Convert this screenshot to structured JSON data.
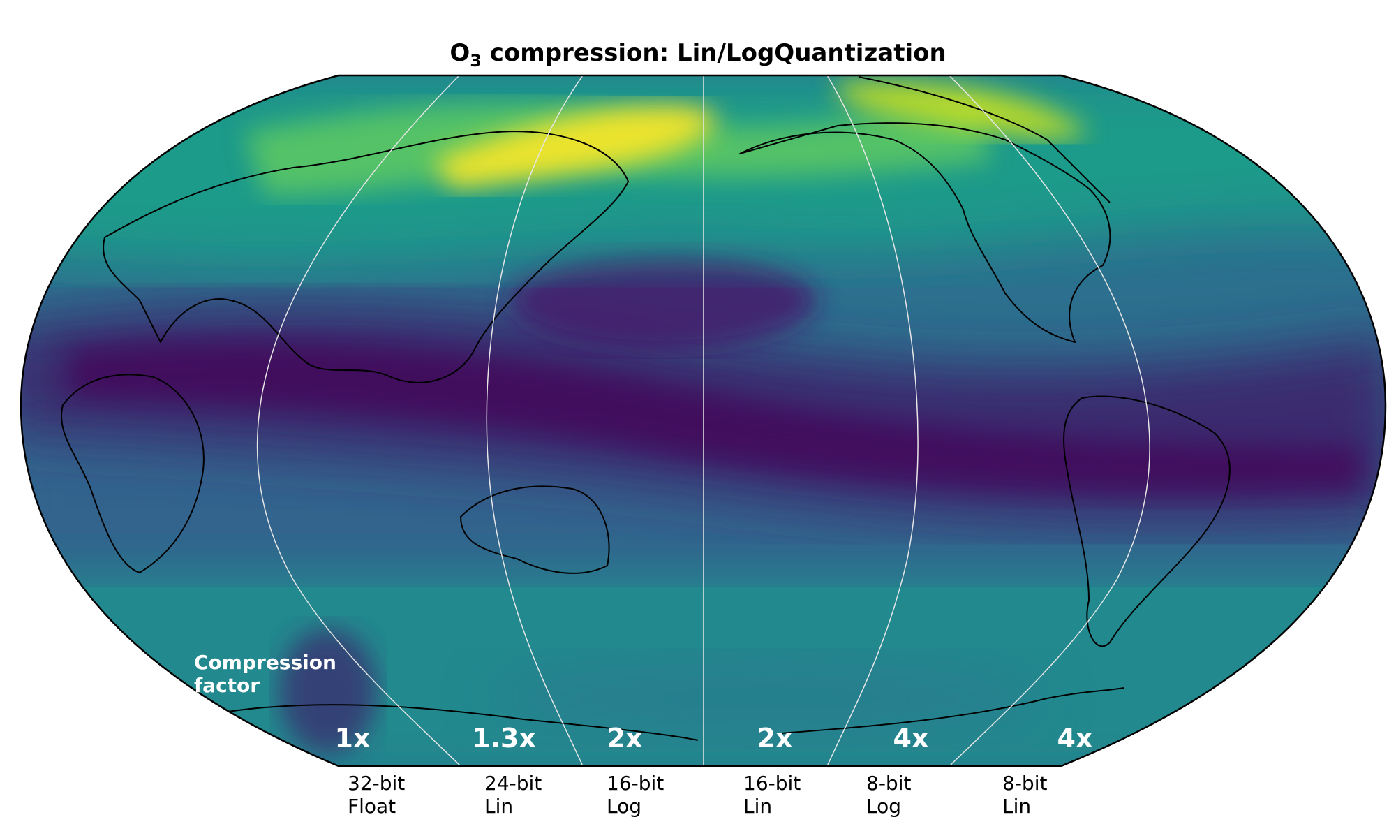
{
  "title": {
    "prefix": "O",
    "subscript": "3",
    "suffix": " compression: Lin/LogQuantization"
  },
  "compression_label": {
    "line1": "Compression",
    "line2": "factor"
  },
  "panels": [
    {
      "factor": "1x",
      "bits": "32-bit",
      "method": "Float"
    },
    {
      "factor": "1.3x",
      "bits": "24-bit",
      "method": "Lin"
    },
    {
      "factor": "2x",
      "bits": "16-bit",
      "method": "Log"
    },
    {
      "factor": "2x",
      "bits": "16-bit",
      "method": "Lin"
    },
    {
      "factor": "4x",
      "bits": "8-bit",
      "method": "Log"
    },
    {
      "factor": "4x",
      "bits": "8-bit",
      "method": "Lin"
    }
  ],
  "colors": {
    "colormap": "viridis",
    "low": "#440154",
    "mid": "#21918c",
    "high": "#fde725",
    "outline": "#000000",
    "divider": "#e6e6e6"
  }
}
